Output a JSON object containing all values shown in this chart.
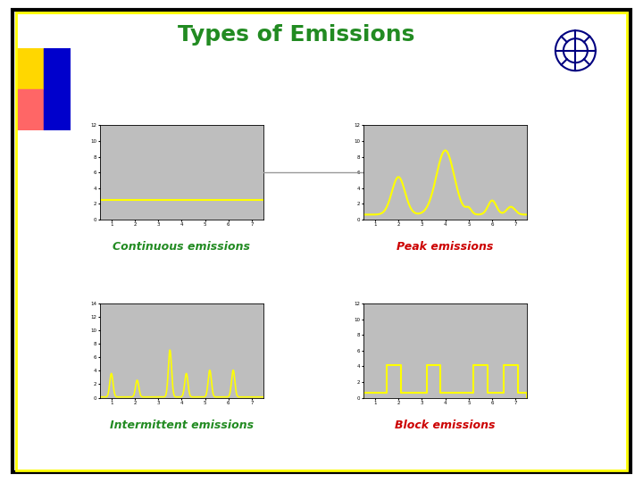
{
  "title": "Types of Emissions",
  "title_color": "#228B22",
  "title_fontsize": 18,
  "bg_color": "#FFFFFF",
  "outer_border_color": "#000000",
  "inner_border_color": "#FFFF00",
  "plot_bg_color": "#BEBEBE",
  "line_color": "#FFFF00",
  "labels": [
    "Continuous emissions",
    "Peak emissions",
    "Intermittent emissions",
    "Block emissions"
  ],
  "label_colors": [
    "#228B22",
    "#CC0000",
    "#228B22",
    "#CC0000"
  ],
  "label_fontsize": 9,
  "xlim": [
    0.5,
    7.5
  ],
  "x_ticks": [
    1,
    2,
    3,
    4,
    5,
    6,
    7
  ],
  "continuous_ylim": [
    0,
    12
  ],
  "peak_ylim": [
    0,
    12
  ],
  "intermittent_ylim": [
    0,
    14
  ],
  "block_ylim": [
    0,
    12
  ],
  "connector_color": "#999999",
  "logo_color": "#000080",
  "deco_colors": [
    "#FFD700",
    "#0000CC",
    "#FF6666",
    "#0000CC"
  ]
}
